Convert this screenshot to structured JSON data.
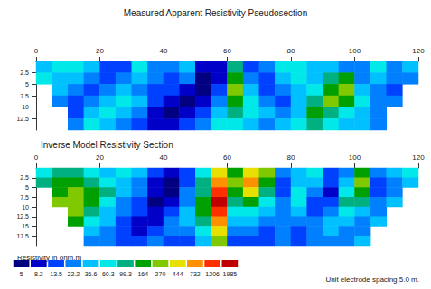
{
  "chart_data": [
    {
      "type": "heatmap",
      "title": "Measured Apparent Resistivity Pseudosection",
      "x": [
        2.5,
        7.5,
        12.5,
        17.5,
        22.5,
        27.5,
        32.5,
        37.5,
        42.5,
        47.5,
        52.5,
        57.5,
        62.5,
        67.5,
        72.5,
        77.5,
        82.5,
        87.5,
        92.5,
        97.5,
        102.5,
        107.5,
        112.5,
        117.5
      ],
      "y": [
        1.25,
        3.75,
        6.25,
        8.75,
        11.25,
        13.75
      ],
      "cells": [
        [
          45,
          75,
          75,
          45,
          17,
          17,
          75,
          28,
          28,
          45,
          10,
          10,
          120,
          17,
          28,
          75,
          75,
          45,
          45,
          28,
          28,
          75,
          28,
          45
        ],
        [
          75,
          45,
          45,
          28,
          17,
          28,
          45,
          28,
          17,
          28,
          6,
          10,
          200,
          28,
          17,
          45,
          75,
          45,
          120,
          200,
          28,
          45,
          28,
          28
        ],
        [
          null,
          45,
          28,
          17,
          28,
          45,
          28,
          17,
          17,
          10,
          6,
          17,
          330,
          45,
          17,
          28,
          45,
          75,
          200,
          330,
          45,
          28,
          17,
          null
        ],
        [
          null,
          28,
          17,
          28,
          45,
          75,
          45,
          17,
          10,
          6,
          10,
          28,
          200,
          75,
          28,
          17,
          45,
          120,
          330,
          200,
          75,
          28,
          28,
          null
        ],
        [
          null,
          null,
          17,
          45,
          75,
          45,
          28,
          10,
          6,
          10,
          17,
          45,
          120,
          75,
          45,
          28,
          45,
          200,
          120,
          75,
          45,
          28,
          null,
          null
        ],
        [
          null,
          null,
          28,
          75,
          45,
          28,
          17,
          10,
          10,
          17,
          28,
          75,
          75,
          45,
          28,
          45,
          75,
          120,
          75,
          45,
          45,
          28,
          null,
          null
        ]
      ],
      "xlim": [
        0,
        120
      ],
      "xticks": [
        0,
        20,
        40,
        60,
        80,
        100,
        120
      ],
      "ylim": [
        0,
        15
      ],
      "yticks": [
        2.5,
        5,
        7.5,
        10,
        12.5
      ],
      "grid": false
    },
    {
      "type": "heatmap",
      "title": "Inverse Model Resistivity Section",
      "x": [
        2.5,
        7.5,
        12.5,
        17.5,
        22.5,
        27.5,
        32.5,
        37.5,
        42.5,
        47.5,
        52.5,
        57.5,
        62.5,
        67.5,
        72.5,
        77.5,
        82.5,
        87.5,
        92.5,
        97.5,
        102.5,
        107.5,
        112.5,
        117.5
      ],
      "y": [
        1.25,
        3.75,
        6.25,
        8.75,
        11.25,
        13.75,
        16.25,
        18.75
      ],
      "cells": [
        [
          75,
          120,
          120,
          75,
          45,
          75,
          45,
          17,
          10,
          17,
          75,
          550,
          200,
          550,
          330,
          28,
          45,
          75,
          17,
          28,
          200,
          28,
          45,
          75
        ],
        [
          120,
          200,
          200,
          120,
          75,
          45,
          28,
          10,
          6,
          17,
          120,
          900,
          330,
          900,
          200,
          17,
          45,
          45,
          17,
          45,
          330,
          17,
          28,
          45
        ],
        [
          null,
          200,
          330,
          200,
          120,
          45,
          28,
          10,
          6,
          28,
          120,
          1500,
          200,
          550,
          120,
          17,
          75,
          28,
          10,
          75,
          200,
          17,
          28,
          null
        ],
        [
          null,
          330,
          330,
          200,
          75,
          28,
          17,
          6,
          10,
          28,
          200,
          2300,
          120,
          200,
          75,
          28,
          75,
          17,
          17,
          120,
          120,
          28,
          45,
          null
        ],
        [
          null,
          null,
          330,
          120,
          45,
          28,
          17,
          10,
          17,
          45,
          200,
          1500,
          75,
          75,
          45,
          28,
          45,
          17,
          28,
          75,
          45,
          28,
          null,
          null
        ],
        [
          null,
          null,
          200,
          75,
          45,
          17,
          10,
          10,
          28,
          45,
          120,
          900,
          45,
          45,
          28,
          28,
          28,
          28,
          45,
          45,
          28,
          45,
          null,
          null
        ],
        [
          null,
          null,
          null,
          45,
          28,
          17,
          10,
          17,
          28,
          28,
          75,
          550,
          28,
          28,
          17,
          28,
          17,
          28,
          45,
          28,
          28,
          null,
          null,
          null
        ],
        [
          null,
          null,
          null,
          28,
          28,
          17,
          17,
          28,
          17,
          17,
          45,
          330,
          17,
          17,
          17,
          28,
          17,
          28,
          28,
          28,
          45,
          null,
          null,
          null
        ]
      ],
      "xlim": [
        0,
        120
      ],
      "xticks": [
        0,
        20,
        40,
        60,
        80,
        100,
        120
      ],
      "ylim": [
        0,
        20
      ],
      "yticks": [
        2.5,
        5,
        7.5,
        10,
        12.5,
        15,
        17.5
      ],
      "grid": false
    }
  ],
  "color_bar": {
    "title": "Resistivity in ohm.m",
    "values": [
      5.0,
      8.2,
      13.5,
      22.2,
      36.6,
      60.3,
      99.3,
      164,
      270,
      444,
      732,
      1206,
      1985
    ],
    "colors": [
      "#000080",
      "#0000c8",
      "#0040ff",
      "#0080ff",
      "#00c0ff",
      "#00e8e8",
      "#00b080",
      "#00a000",
      "#80c800",
      "#e8e000",
      "#ff9000",
      "#ff3000",
      "#c00000"
    ]
  },
  "footnote": "Unit electrode spacing 5.0 m."
}
